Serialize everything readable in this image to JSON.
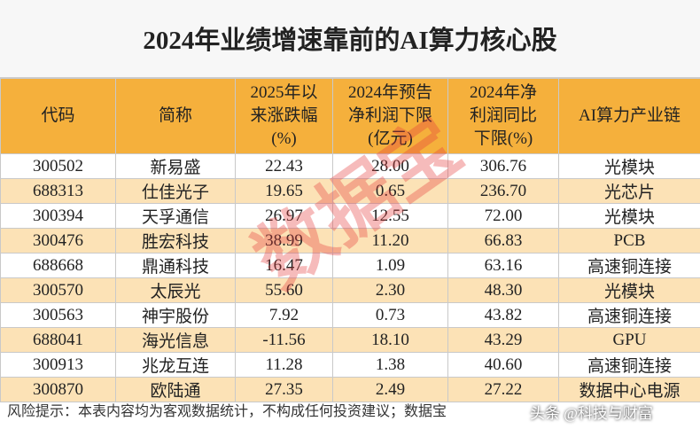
{
  "header": {
    "title": "2024年业绩增速靠前的AI算力核心股"
  },
  "table": {
    "columns": [
      [
        "代码"
      ],
      [
        "简称"
      ],
      [
        "2025年以",
        "来涨跌幅",
        "(%)"
      ],
      [
        "2024年预告",
        "净利润下限",
        "(亿元)"
      ],
      [
        "2024年净",
        "利润同比",
        "下限(%)"
      ],
      [
        "AI算力产业链"
      ]
    ],
    "rows": [
      [
        "300502",
        "新易盛",
        "22.43",
        "28.00",
        "306.76",
        "光模块"
      ],
      [
        "688313",
        "仕佳光子",
        "19.65",
        "0.65",
        "236.70",
        "光芯片"
      ],
      [
        "300394",
        "天孚通信",
        "26.97",
        "12.55",
        "72.00",
        "光模块"
      ],
      [
        "300476",
        "胜宏科技",
        "38.99",
        "11.20",
        "66.83",
        "PCB"
      ],
      [
        "688668",
        "鼎通科技",
        "16.47",
        "1.09",
        "63.16",
        "高速铜连接"
      ],
      [
        "300570",
        "太辰光",
        "55.60",
        "2.30",
        "48.30",
        "光模块"
      ],
      [
        "300563",
        "神宇股份",
        "7.92",
        "0.73",
        "43.82",
        "高速铜连接"
      ],
      [
        "688041",
        "海光信息",
        "-11.56",
        "18.10",
        "43.29",
        "GPU"
      ],
      [
        "300913",
        "兆龙互连",
        "11.28",
        "1.38",
        "40.60",
        "高速铜连接"
      ],
      [
        "300870",
        "欧陆通",
        "27.35",
        "2.49",
        "27.22",
        "数据中心电源"
      ]
    ]
  },
  "footer": {
    "note": "风险提示：本表内容均为客观数据统计，不构成任何投资建议；数据宝"
  },
  "watermarks": {
    "center": "数据宝",
    "corner": "头条 @科技与财富"
  }
}
